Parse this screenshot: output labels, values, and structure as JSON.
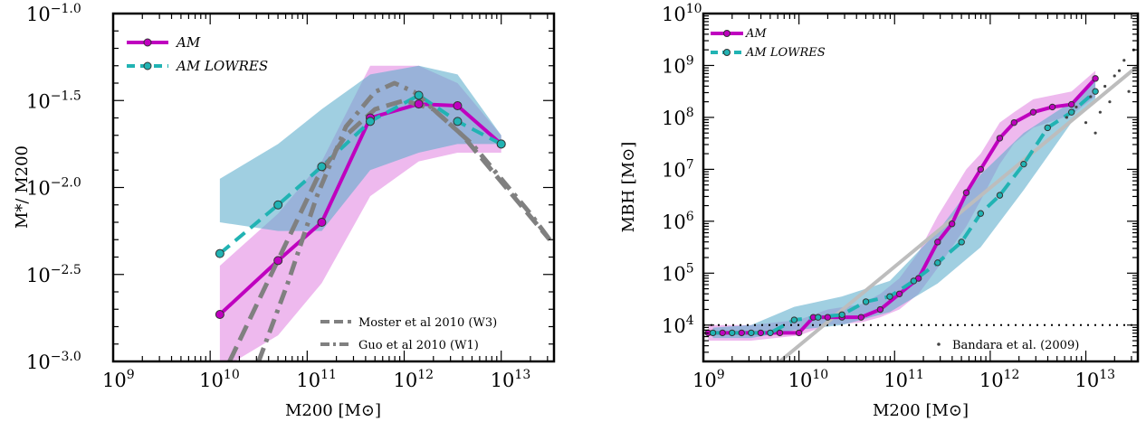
{
  "chart_data": [
    {
      "type": "line",
      "xlabel": "M200 [M⊙]",
      "ylabel": "M*/ M200",
      "xscale": "log",
      "yscale": "log",
      "xlim": [
        1000000000.0,
        35000000000000.0
      ],
      "ylim_log10": [
        -3.0,
        -1.0
      ],
      "x_ticks": [
        {
          "base": "10",
          "exp": "9"
        },
        {
          "base": "10",
          "exp": "10"
        },
        {
          "base": "10",
          "exp": "11"
        },
        {
          "base": "10",
          "exp": "12"
        },
        {
          "base": "10",
          "exp": "13"
        }
      ],
      "y_ticks": [
        {
          "base": "10",
          "exp": "−3.0"
        },
        {
          "base": "10",
          "exp": "−2.5"
        },
        {
          "base": "10",
          "exp": "−2.0"
        },
        {
          "base": "10",
          "exp": "−1.5"
        },
        {
          "base": "10",
          "exp": "−1.0"
        }
      ],
      "legend": {
        "placement": "upper-left",
        "entries": [
          "AM",
          "AM LOWRES"
        ]
      },
      "ref_legend": {
        "placement": "lower-right",
        "entries": [
          "Moster et al 2010 (W3)",
          "Guo et al 2010 (W1)"
        ]
      },
      "series": [
        {
          "name": "AM",
          "color": "#bf00bf",
          "style": "solid-circles",
          "x_log10": [
            10.1,
            10.7,
            11.15,
            11.65,
            12.15,
            12.55,
            13.0
          ],
          "y_log10": [
            -2.73,
            -2.42,
            -2.2,
            -1.6,
            -1.52,
            -1.53,
            -1.75
          ],
          "band_log10": {
            "x": [
              10.1,
              10.7,
              11.15,
              11.65,
              12.15,
              12.55,
              13.0
            ],
            "lower": [
              -3.05,
              -2.85,
              -2.55,
              -2.05,
              -1.85,
              -1.8,
              -1.8
            ],
            "upper": [
              -2.45,
              -2.15,
              -1.85,
              -1.3,
              -1.3,
              -1.4,
              -1.7
            ]
          }
        },
        {
          "name": "AM LOWRES",
          "color": "#21b3b3",
          "style": "dashed-circles",
          "x_log10": [
            10.1,
            10.7,
            11.15,
            11.65,
            12.15,
            12.55,
            13.0
          ],
          "y_log10": [
            -2.38,
            -2.1,
            -1.88,
            -1.62,
            -1.47,
            -1.62,
            -1.75
          ],
          "band_log10": {
            "x": [
              10.1,
              10.7,
              11.15,
              11.65,
              12.15,
              12.55,
              13.0
            ],
            "lower": [
              -2.2,
              -2.25,
              -2.25,
              -1.9,
              -1.8,
              -1.75,
              -1.75
            ],
            "upper": [
              -1.95,
              -1.75,
              -1.55,
              -1.35,
              -1.3,
              -1.35,
              -1.7
            ]
          }
        },
        {
          "name": "Moster et al 2010 (W3)",
          "color": "#808080",
          "style": "dashed",
          "x_log10": [
            10.2,
            10.5,
            10.8,
            11.1,
            11.4,
            11.7,
            12.0,
            12.3,
            12.6,
            12.9,
            13.2,
            13.5
          ],
          "y_log10": [
            -3.0,
            -2.65,
            -2.3,
            -1.95,
            -1.7,
            -1.55,
            -1.5,
            -1.55,
            -1.7,
            -1.9,
            -2.1,
            -2.3
          ]
        },
        {
          "name": "Guo et al 2010 (W1)",
          "color": "#808080",
          "style": "dashdot",
          "x_log10": [
            10.5,
            10.8,
            11.1,
            11.4,
            11.7,
            11.9,
            12.1,
            12.4,
            12.7,
            13.0,
            13.3,
            13.5
          ],
          "y_log10": [
            -3.0,
            -2.55,
            -2.05,
            -1.65,
            -1.45,
            -1.4,
            -1.45,
            -1.6,
            -1.75,
            -1.95,
            -2.15,
            -2.3
          ]
        }
      ]
    },
    {
      "type": "line",
      "xlabel": "M200 [M⊙]",
      "ylabel": "MBH [M⊙]",
      "xscale": "log",
      "yscale": "log",
      "xlim": [
        1000000000.0,
        35000000000000.0
      ],
      "ylim_log10": [
        3.3,
        10.0
      ],
      "x_ticks": [
        {
          "base": "10",
          "exp": "9"
        },
        {
          "base": "10",
          "exp": "10"
        },
        {
          "base": "10",
          "exp": "11"
        },
        {
          "base": "10",
          "exp": "12"
        },
        {
          "base": "10",
          "exp": "13"
        }
      ],
      "y_ticks": [
        {
          "base": "10",
          "exp": "4"
        },
        {
          "base": "10",
          "exp": "5"
        },
        {
          "base": "10",
          "exp": "6"
        },
        {
          "base": "10",
          "exp": "7"
        },
        {
          "base": "10",
          "exp": "8"
        },
        {
          "base": "10",
          "exp": "9"
        },
        {
          "base": "10",
          "exp": "10"
        }
      ],
      "legend": {
        "placement": "upper-left",
        "entries": [
          "AM",
          "AM LOWRES"
        ]
      },
      "ref_legend": {
        "placement": "lower-right",
        "entries": [
          "Bandara et al. (2009)"
        ]
      },
      "seed_mass_log10": 4.0,
      "series": [
        {
          "name": "AM",
          "color": "#bf00bf",
          "style": "solid-circles",
          "x_log10": [
            9.05,
            9.2,
            9.4,
            9.6,
            9.8,
            10.0,
            10.15,
            10.3,
            10.45,
            10.65,
            10.85,
            11.05,
            11.25,
            11.45,
            11.6,
            11.75,
            11.9,
            12.1,
            12.25,
            12.45,
            12.65,
            12.85,
            13.1
          ],
          "y_log10": [
            3.85,
            3.85,
            3.85,
            3.85,
            3.85,
            3.85,
            4.15,
            4.15,
            4.15,
            4.15,
            4.3,
            4.6,
            4.9,
            5.6,
            5.95,
            6.55,
            7.0,
            7.6,
            7.9,
            8.1,
            8.2,
            8.25,
            8.75
          ],
          "band_log10": {
            "x": [
              9.05,
              9.5,
              10.0,
              10.3,
              10.65,
              10.85,
              11.05,
              11.25,
              11.45,
              11.75,
              11.9,
              12.1,
              12.25,
              12.45,
              12.85,
              13.1
            ],
            "lower": [
              3.7,
              3.7,
              3.8,
              4.0,
              4.05,
              4.15,
              4.3,
              4.6,
              5.1,
              5.9,
              6.4,
              7.1,
              7.5,
              7.8,
              8.05,
              8.4
            ],
            "upper": [
              4.0,
              4.0,
              4.1,
              4.3,
              4.4,
              4.6,
              4.9,
              5.4,
              6.1,
              7.0,
              7.3,
              7.9,
              8.1,
              8.35,
              8.5,
              8.9
            ]
          }
        },
        {
          "name": "AM LOWRES",
          "color": "#21b3b3",
          "style": "dashed-circles",
          "x_log10": [
            9.1,
            9.3,
            9.5,
            9.7,
            9.95,
            10.2,
            10.45,
            10.7,
            10.95,
            11.2,
            11.45,
            11.7,
            11.9,
            12.1,
            12.35,
            12.6,
            12.85,
            13.1
          ],
          "y_log10": [
            3.85,
            3.85,
            3.85,
            3.85,
            4.1,
            4.15,
            4.2,
            4.45,
            4.55,
            4.85,
            5.2,
            5.6,
            6.15,
            6.5,
            7.1,
            7.8,
            8.1,
            8.5
          ],
          "band_log10": {
            "x": [
              9.1,
              9.5,
              9.95,
              10.45,
              10.95,
              11.45,
              11.9,
              12.35,
              12.85,
              13.1
            ],
            "lower": [
              3.75,
              3.75,
              3.9,
              4.0,
              4.25,
              4.8,
              5.5,
              6.6,
              7.9,
              8.3
            ],
            "upper": [
              3.95,
              4.0,
              4.35,
              4.55,
              4.85,
              5.8,
              6.9,
              7.7,
              8.3,
              8.7
            ]
          }
        },
        {
          "name": "Bandara et al. (2009)",
          "color": "#444444",
          "style": "dotted-cloud",
          "x_log10": [
            12.8,
            12.9,
            13.0,
            13.05,
            13.1,
            13.15,
            13.2,
            13.25,
            13.3,
            13.35,
            13.4,
            13.45,
            13.5
          ],
          "y_log10": [
            8.0,
            8.2,
            7.9,
            8.4,
            7.7,
            8.1,
            8.6,
            8.3,
            8.8,
            8.9,
            9.1,
            8.5,
            9.3
          ]
        }
      ]
    }
  ]
}
